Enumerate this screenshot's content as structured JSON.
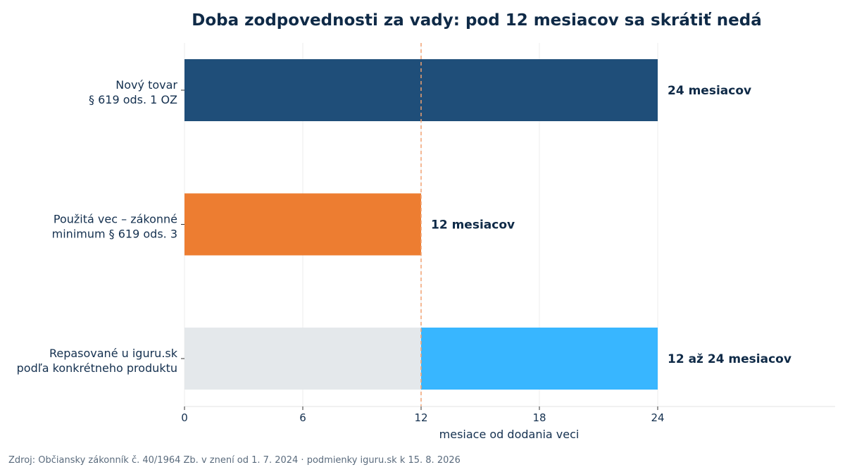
{
  "chart_data": {
    "type": "bar",
    "orientation": "horizontal",
    "title": "Doba zodpovednosti za vady: pod 12 mesiacov sa skrátiť nedá",
    "xlabel": "mesiace od dodania veci",
    "ylabel": "",
    "xlim": [
      0,
      33
    ],
    "xticks": [
      0,
      6,
      12,
      18,
      24
    ],
    "grid": true,
    "reference_line": {
      "x": 12,
      "style": "dashed",
      "color": "#f0a070"
    },
    "categories": [
      {
        "lines": [
          "Nový tovar",
          "§ 619 ods. 1 OZ"
        ]
      },
      {
        "lines": [
          "Použitá vec – zákonné",
          "minimum § 619 ods. 3"
        ]
      },
      {
        "lines": [
          "Repasované u iguru.sk",
          "podľa konkrétneho produktu"
        ]
      }
    ],
    "bars": [
      {
        "segments": [
          {
            "start": 0,
            "end": 24,
            "color": "#1f4e79"
          }
        ],
        "label": "24 mesiacov"
      },
      {
        "segments": [
          {
            "start": 0,
            "end": 12,
            "color": "#ed7d31"
          }
        ],
        "label": "12 mesiacov"
      },
      {
        "segments": [
          {
            "start": 0,
            "end": 12,
            "color": "#e4e8eb"
          },
          {
            "start": 12,
            "end": 24,
            "color": "#38b6ff"
          }
        ],
        "label": "12 až 24 mesiacov"
      }
    ],
    "source": "Zdroj: Občiansky zákonník č. 40/1964 Zb. v znení od 1. 7. 2024 · podmienky iguru.sk k 15. 8. 2026"
  }
}
